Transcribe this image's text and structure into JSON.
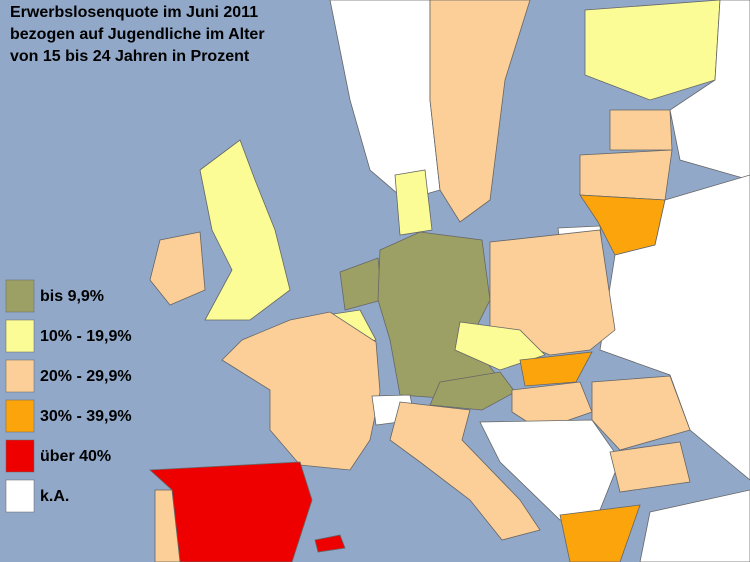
{
  "title": [
    "Erwerbslosenquote im Juni 2011",
    "bezogen auf Jugendliche im Alter",
    "von 15 bis 24 Jahren in Prozent"
  ],
  "legend": [
    {
      "label": "bis 9,9%",
      "color": "#9ca064"
    },
    {
      "label": "10% - 19,9%",
      "color": "#fcfc96"
    },
    {
      "label": "20% - 29,9%",
      "color": "#fbcf97"
    },
    {
      "label": "30% - 39,9%",
      "color": "#fca40c"
    },
    {
      "label": "über 40%",
      "color": "#ee0000"
    },
    {
      "label": "k.A.",
      "color": "#ffffff"
    }
  ]
}
